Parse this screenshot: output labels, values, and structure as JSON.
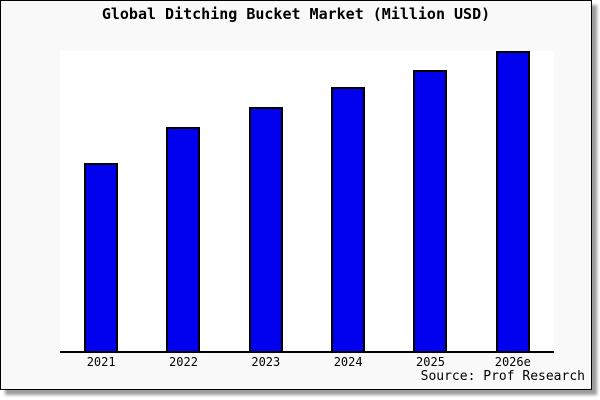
{
  "header": {
    "title": "Global Ditching Bucket Market (Million USD)"
  },
  "footer": {
    "source": "Source: Prof Research"
  },
  "colors": {
    "card_background": "#f9f9f9",
    "plot_background": "#ffffff",
    "bar_fill": "#0000ee",
    "bar_border": "#000000",
    "axis": "#000000",
    "shadow": "#9c9c9c"
  },
  "chart_data": {
    "type": "bar",
    "title": "Global Ditching Bucket Market (Million USD)",
    "categories": [
      "2021",
      "2022",
      "2023",
      "2024",
      "2025",
      "2026e"
    ],
    "values": [
      190,
      226,
      246,
      266,
      283,
      302
    ],
    "value_scale": "relative bar heights in screen px; no y-axis or data labels are shown in the chart",
    "xlabel": "",
    "ylabel": "",
    "ylim": [
      0,
      302
    ],
    "grid": false,
    "legend": false,
    "bar_color": "#0000ee",
    "bar_border_color": "#000000",
    "source": "Source: Prof Research"
  }
}
